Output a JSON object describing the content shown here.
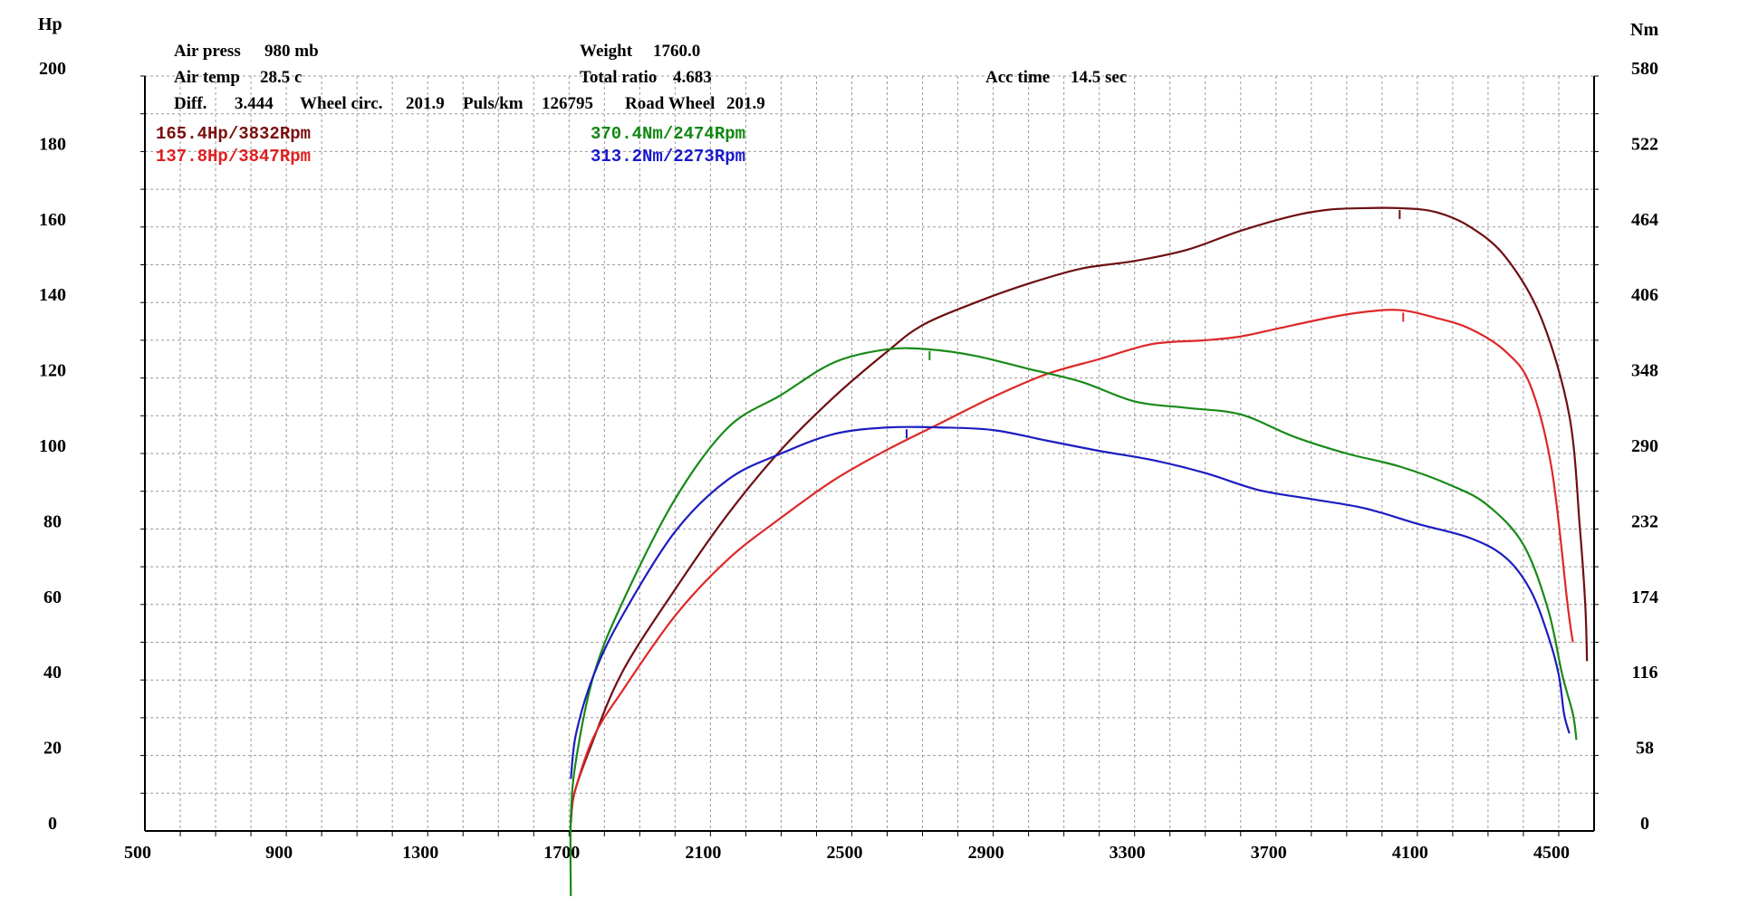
{
  "chart_data": {
    "type": "line",
    "left_axis_unit": "Hp",
    "right_axis_unit": "Nm",
    "x_ticks": [
      500,
      900,
      1300,
      1700,
      2100,
      2500,
      2900,
      3300,
      3700,
      4100,
      4500
    ],
    "xlim": [
      500,
      4600
    ],
    "ylim_left": [
      0,
      200
    ],
    "ylim_right": [
      0,
      580
    ],
    "left_ticks": [
      "0",
      "20",
      "40",
      "60",
      "80",
      "100",
      "120",
      "140",
      "160",
      "180",
      "200"
    ],
    "right_ticks": [
      "0",
      "58",
      "116",
      "174",
      "232",
      "290",
      "348",
      "406",
      "464",
      "522",
      "580"
    ],
    "grid": true,
    "info": {
      "air_press_label": "Air press",
      "air_press_value": "980 mb",
      "air_temp_label": "Air temp",
      "air_temp_value": "28.5 c",
      "diff_label": "Diff.",
      "diff_value": "3.444",
      "wheel_circ_label": "Wheel circ.",
      "wheel_circ_value": "201.9",
      "puls_label": "Puls/km",
      "puls_value": "126795",
      "road_wheel_label": "Road Wheel",
      "road_wheel_value": "201.9",
      "weight_label": "Weight",
      "weight_value": "1760.0",
      "total_ratio_label": "Total ratio",
      "total_ratio_value": "4.683",
      "acc_time_label": "Acc time",
      "acc_time_value": "14.5 sec"
    },
    "peak_labels": [
      {
        "text": "165.4Hp/3832Rpm",
        "color": "#7a0f0f"
      },
      {
        "text": "137.8Hp/3847Rpm",
        "color": "#e02020"
      },
      {
        "text": "370.4Nm/2474Rpm",
        "color": "#118811"
      },
      {
        "text": "313.2Nm/2273Rpm",
        "color": "#1a1acc"
      }
    ],
    "series": [
      {
        "axis": "left",
        "color": "#6e0f12",
        "peak_marker": 4050,
        "points": [
          [
            1705,
            2
          ],
          [
            1715,
            10
          ],
          [
            1760,
            22
          ],
          [
            1850,
            42
          ],
          [
            2000,
            64
          ],
          [
            2150,
            84
          ],
          [
            2300,
            101
          ],
          [
            2450,
            115
          ],
          [
            2600,
            127
          ],
          [
            2700,
            134
          ],
          [
            2850,
            140
          ],
          [
            3000,
            145
          ],
          [
            3150,
            149
          ],
          [
            3300,
            151
          ],
          [
            3450,
            154
          ],
          [
            3600,
            159
          ],
          [
            3750,
            163
          ],
          [
            3850,
            164.6
          ],
          [
            3950,
            165
          ],
          [
            4050,
            165
          ],
          [
            4150,
            164
          ],
          [
            4250,
            160
          ],
          [
            4350,
            152
          ],
          [
            4450,
            136
          ],
          [
            4530,
            110
          ],
          [
            4560,
            80
          ],
          [
            4575,
            60
          ],
          [
            4580,
            45
          ]
        ]
      },
      {
        "axis": "left",
        "color": "#de2828",
        "peak_marker": 4060,
        "points": [
          [
            1705,
            3
          ],
          [
            1715,
            10
          ],
          [
            1770,
            25
          ],
          [
            1850,
            37
          ],
          [
            2000,
            57
          ],
          [
            2150,
            72
          ],
          [
            2300,
            83
          ],
          [
            2450,
            93
          ],
          [
            2600,
            101
          ],
          [
            2750,
            108
          ],
          [
            2900,
            115
          ],
          [
            3050,
            121
          ],
          [
            3200,
            125
          ],
          [
            3350,
            129
          ],
          [
            3500,
            130
          ],
          [
            3600,
            131
          ],
          [
            3700,
            133
          ],
          [
            3850,
            136
          ],
          [
            3950,
            137.5
          ],
          [
            4050,
            138
          ],
          [
            4150,
            136
          ],
          [
            4250,
            133
          ],
          [
            4350,
            127
          ],
          [
            4420,
            118
          ],
          [
            4480,
            96
          ],
          [
            4525,
            60
          ],
          [
            4540,
            50
          ]
        ]
      },
      {
        "axis": "right",
        "color": "#188a18",
        "peak_marker": 2720,
        "points": [
          [
            1705,
            -50
          ],
          [
            1705,
            10
          ],
          [
            1720,
            55
          ],
          [
            1770,
            120
          ],
          [
            1850,
            175
          ],
          [
            2000,
            255
          ],
          [
            2150,
            310
          ],
          [
            2300,
            335
          ],
          [
            2450,
            360
          ],
          [
            2600,
            370
          ],
          [
            2720,
            370
          ],
          [
            2850,
            365
          ],
          [
            3000,
            355
          ],
          [
            3150,
            345
          ],
          [
            3300,
            330
          ],
          [
            3450,
            325
          ],
          [
            3600,
            320
          ],
          [
            3750,
            303
          ],
          [
            3900,
            290
          ],
          [
            4050,
            280
          ],
          [
            4200,
            265
          ],
          [
            4300,
            250
          ],
          [
            4400,
            220
          ],
          [
            4470,
            170
          ],
          [
            4510,
            120
          ],
          [
            4540,
            90
          ],
          [
            4550,
            70
          ]
        ]
      },
      {
        "axis": "right",
        "color": "#1c1cc0",
        "peak_marker": 2655,
        "points": [
          [
            1705,
            40
          ],
          [
            1720,
            75
          ],
          [
            1770,
            120
          ],
          [
            1850,
            165
          ],
          [
            2000,
            230
          ],
          [
            2150,
            270
          ],
          [
            2300,
            290
          ],
          [
            2450,
            305
          ],
          [
            2600,
            310
          ],
          [
            2750,
            310
          ],
          [
            2900,
            308
          ],
          [
            3050,
            300
          ],
          [
            3200,
            292
          ],
          [
            3350,
            285
          ],
          [
            3500,
            275
          ],
          [
            3650,
            262
          ],
          [
            3800,
            255
          ],
          [
            3950,
            248
          ],
          [
            4100,
            236
          ],
          [
            4250,
            225
          ],
          [
            4350,
            210
          ],
          [
            4420,
            185
          ],
          [
            4470,
            150
          ],
          [
            4500,
            120
          ],
          [
            4515,
            90
          ],
          [
            4530,
            75
          ]
        ]
      }
    ]
  }
}
